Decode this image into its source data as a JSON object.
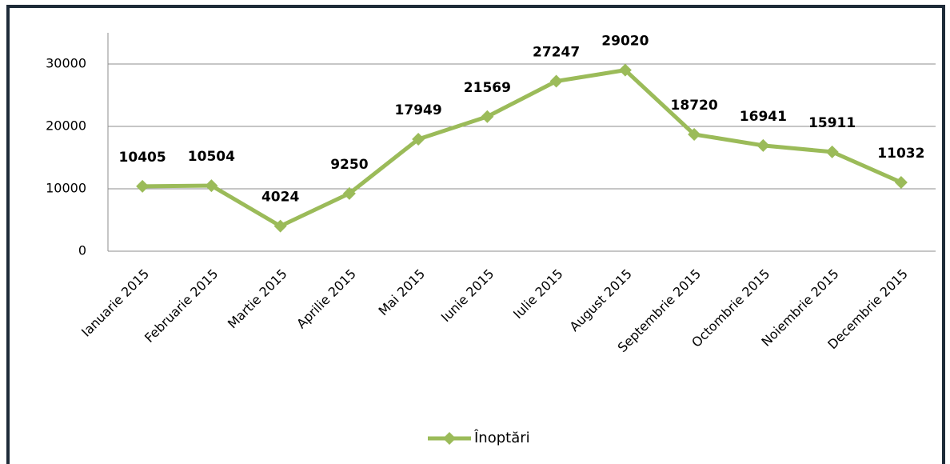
{
  "chart_data": {
    "type": "line",
    "categories": [
      "Ianuarie 2015",
      "Februarie 2015",
      "Martie 2015",
      "Aprilie 2015",
      "Mai 2015",
      "Iunie 2015",
      "Iulie 2015",
      "August 2015",
      "Septembrie 2015",
      "Octombrie 2015",
      "Noiembrie 2015",
      "Decembrie 2015"
    ],
    "series": [
      {
        "name": "Înoptări",
        "color": "#9bbb59",
        "values": [
          10405,
          10504,
          4024,
          9250,
          17949,
          21569,
          27247,
          29020,
          18720,
          16941,
          15911,
          11032
        ]
      }
    ],
    "ylim": [
      0,
      35000
    ],
    "yticks": [
      0,
      10000,
      20000,
      30000
    ],
    "grid": true,
    "legend": "bottom"
  }
}
